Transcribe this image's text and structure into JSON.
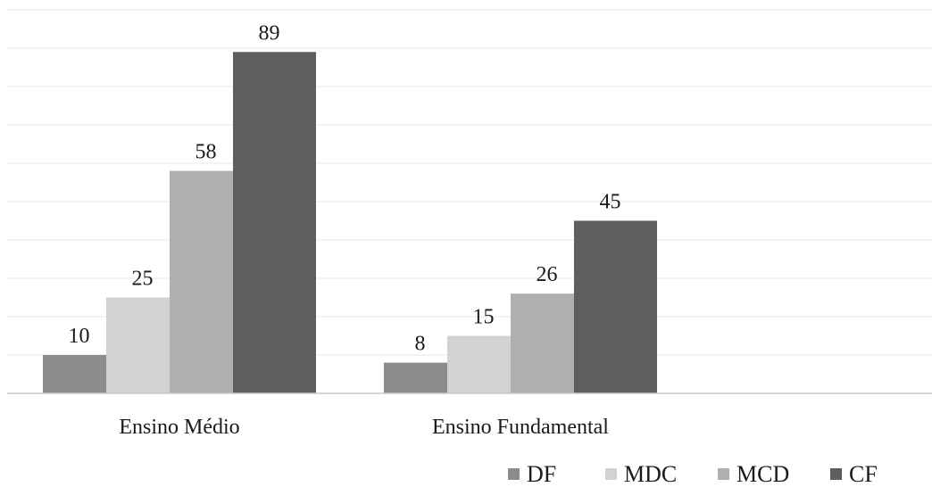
{
  "chart_data": {
    "type": "bar",
    "categories": [
      "Ensino Médio",
      "Ensino Fundamental"
    ],
    "series": [
      {
        "name": "DF",
        "values": [
          10,
          8
        ],
        "color": "#8c8c8c"
      },
      {
        "name": "MDC",
        "values": [
          25,
          15
        ],
        "color": "#d2d2d2"
      },
      {
        "name": "MCD",
        "values": [
          58,
          26
        ],
        "color": "#afafaf"
      },
      {
        "name": "CF",
        "values": [
          89,
          45
        ],
        "color": "#5e5e5e"
      }
    ],
    "ylim": [
      0,
      100
    ],
    "grid": true,
    "legend_position": "bottom-right",
    "title": "",
    "xlabel": "",
    "ylabel": ""
  }
}
